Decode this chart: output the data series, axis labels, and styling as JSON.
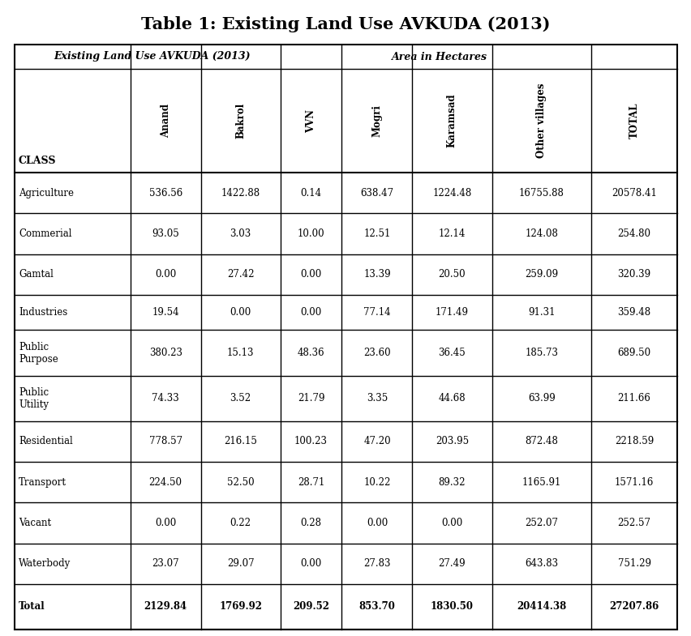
{
  "title": "Table 1: Existing Land Use AVKUDA (2013)",
  "subtitle_left": "Existing Land Use AVKUDA (2013)",
  "subtitle_right": "Area in Hectares",
  "columns": [
    "CLASS",
    "Anand",
    "Bakrol",
    "VVN",
    "Mogri",
    "Karamsad",
    "Other villages",
    "TOTAL"
  ],
  "rows": [
    [
      "Agriculture",
      "536.56",
      "1422.88",
      "0.14",
      "638.47",
      "1224.48",
      "16755.88",
      "20578.41"
    ],
    [
      "Commerial",
      "93.05",
      "3.03",
      "10.00",
      "12.51",
      "12.14",
      "124.08",
      "254.80"
    ],
    [
      "Gamtal",
      "0.00",
      "27.42",
      "0.00",
      "13.39",
      "20.50",
      "259.09",
      "320.39"
    ],
    [
      "Industries",
      "19.54",
      "0.00",
      "0.00",
      "77.14",
      "171.49",
      "91.31",
      "359.48"
    ],
    [
      "Public\nPurpose",
      "380.23",
      "15.13",
      "48.36",
      "23.60",
      "36.45",
      "185.73",
      "689.50"
    ],
    [
      "Public\nUtility",
      "74.33",
      "3.52",
      "21.79",
      "3.35",
      "44.68",
      "63.99",
      "211.66"
    ],
    [
      "Residential",
      "778.57",
      "216.15",
      "100.23",
      "47.20",
      "203.95",
      "872.48",
      "2218.59"
    ],
    [
      "Transport",
      "224.50",
      "52.50",
      "28.71",
      "10.22",
      "89.32",
      "1165.91",
      "1571.16"
    ],
    [
      "Vacant",
      "0.00",
      "0.22",
      "0.28",
      "0.00",
      "0.00",
      "252.07",
      "252.57"
    ],
    [
      "Waterbody",
      "23.07",
      "29.07",
      "0.00",
      "27.83",
      "27.49",
      "643.83",
      "751.29"
    ],
    [
      "Total",
      "2129.84",
      "1769.92",
      "209.52",
      "853.70",
      "1830.50",
      "20414.38",
      "27207.86"
    ]
  ],
  "background_color": "#ffffff",
  "border_color": "#000000",
  "title_fontsize": 15,
  "subtitle_fontsize": 9,
  "header_fontsize": 8.5,
  "cell_fontsize": 8.5
}
